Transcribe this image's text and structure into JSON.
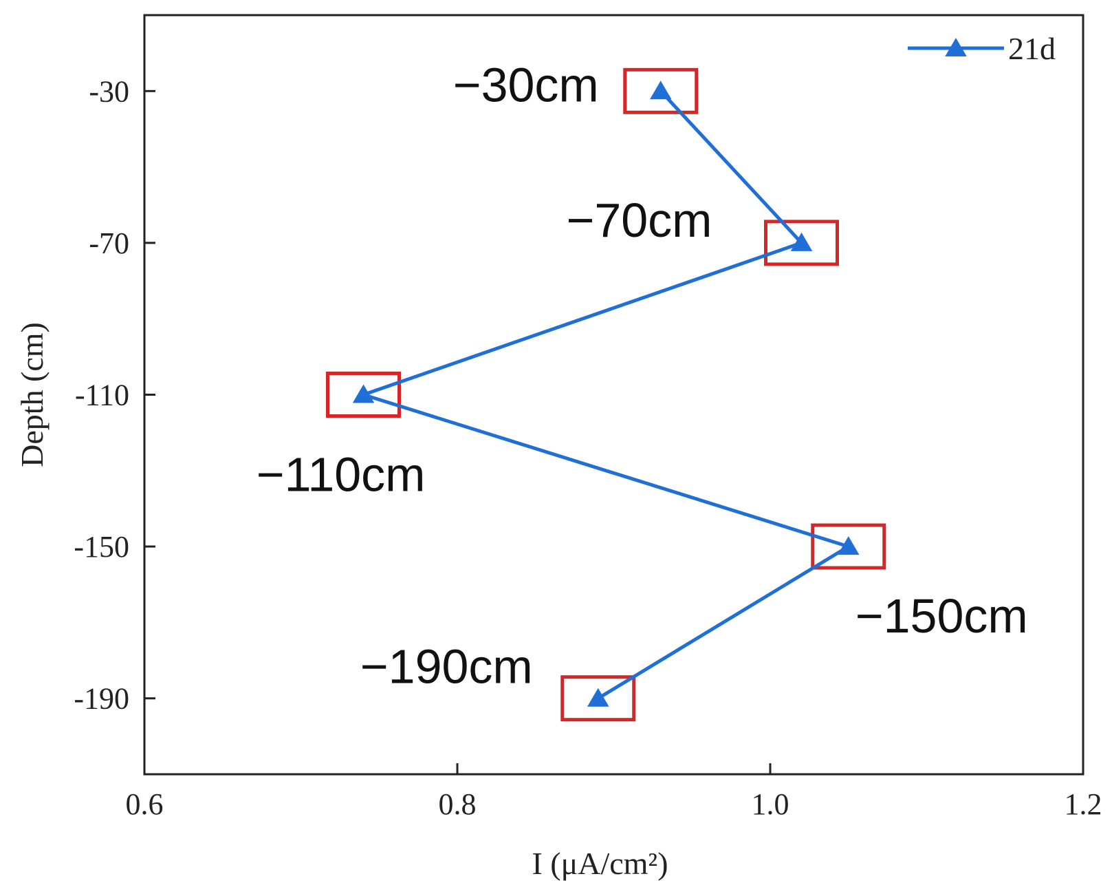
{
  "chart_data": {
    "type": "line",
    "title": "",
    "xlabel": "I (μA/cm²)",
    "ylabel": "Depth (cm)",
    "xlim": [
      0.6,
      1.2
    ],
    "ylim": [
      -210,
      -10
    ],
    "xticks": [
      "0.6",
      "0.8",
      "1.0",
      "1.2"
    ],
    "xtick_values": [
      0.6,
      0.8,
      1.0,
      1.2
    ],
    "yticks": [
      "-30",
      "-70",
      "-110",
      "-150",
      "-190"
    ],
    "ytick_values": [
      -30,
      -70,
      -110,
      -150,
      -190
    ],
    "grid": false,
    "legend_position": "top-right",
    "series": [
      {
        "name": "21d",
        "color": "#1f6fd6",
        "marker": "triangle",
        "points": [
          {
            "x": 0.93,
            "y": -30
          },
          {
            "x": 1.02,
            "y": -70
          },
          {
            "x": 0.74,
            "y": -110
          },
          {
            "x": 1.05,
            "y": -150
          },
          {
            "x": 0.89,
            "y": -190
          }
        ]
      }
    ],
    "annotations": [
      {
        "text": "−30cm",
        "x": 0.93,
        "y": -30,
        "placement": "left"
      },
      {
        "text": "−70cm",
        "x": 1.02,
        "y": -70,
        "placement": "upper-left"
      },
      {
        "text": "−110cm",
        "x": 0.74,
        "y": -110,
        "placement": "lower-left"
      },
      {
        "text": "−150cm",
        "x": 1.05,
        "y": -150,
        "placement": "lower-right"
      },
      {
        "text": "−190cm",
        "x": 0.89,
        "y": -190,
        "placement": "upper-left"
      }
    ],
    "highlight_color": "#d62728"
  }
}
